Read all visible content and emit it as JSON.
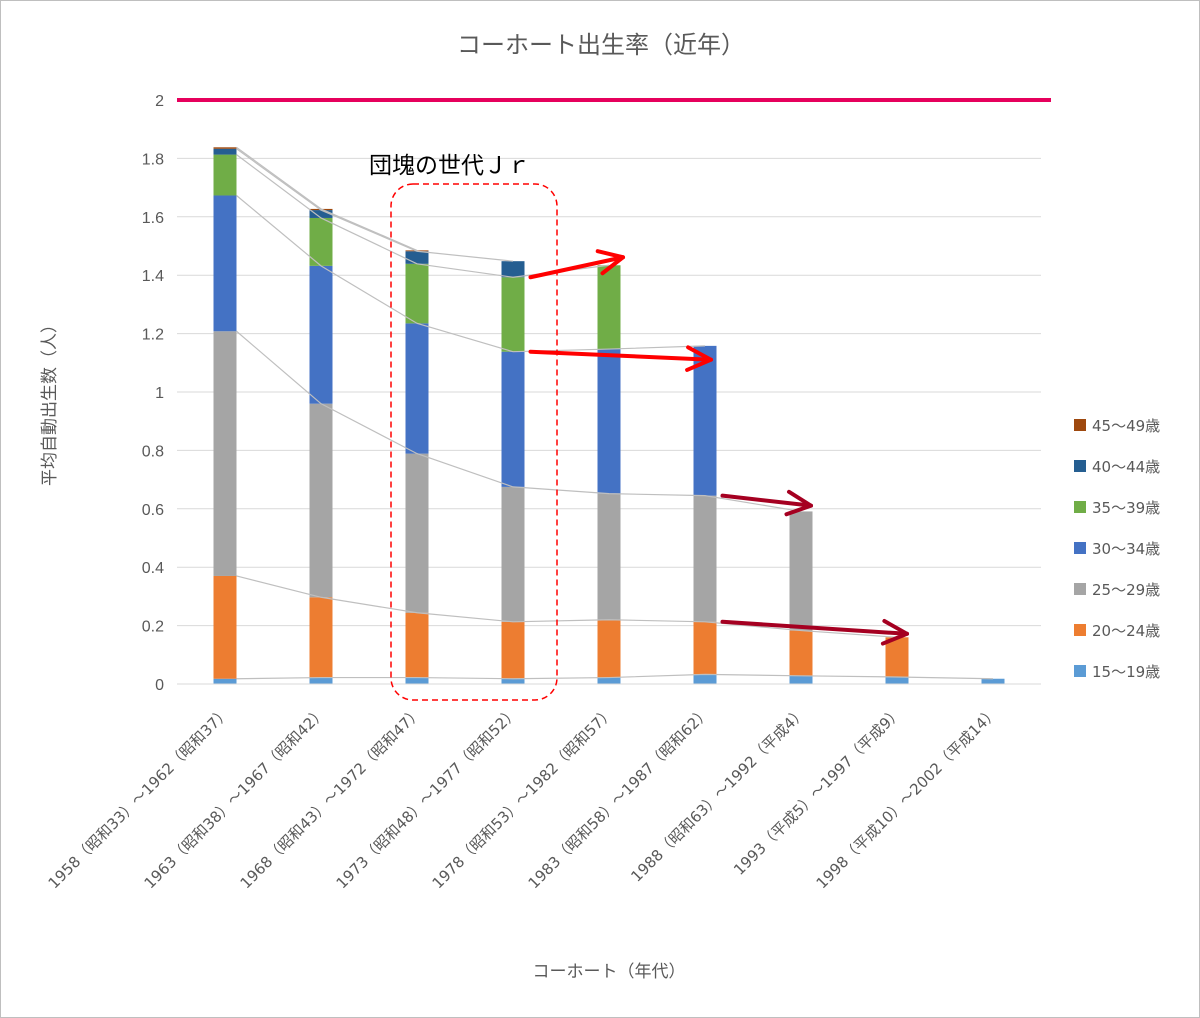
{
  "chart_data": {
    "type": "bar",
    "stacked": true,
    "title": "コーホート出生率（近年）",
    "xlabel": "コーホート（年代）",
    "ylabel": "平均自動出生数（人）",
    "ylim": [
      0,
      2
    ],
    "yticks": [
      "0",
      "0.2",
      "0.4",
      "0.6",
      "0.8",
      "1",
      "1.2",
      "1.4",
      "1.6",
      "1.8",
      "2"
    ],
    "grid": true,
    "legend_position": "right",
    "categories": [
      "1958（昭和33）～1962（昭和37）",
      "1963（昭和38）～1967（昭和42）",
      "1968（昭和43）～1972（昭和47）",
      "1973（昭和48）～1977（昭和52）",
      "1978（昭和53）～1982（昭和57）",
      "1983（昭和58）～1987（昭和62）",
      "1988（昭和63）～1992（平成4）",
      "1993（平成5）～1997（平成9）",
      "1998（平成10）～2002（平成14）"
    ],
    "series": [
      {
        "name": "15～19歳",
        "color": "#5b9bd5",
        "values": [
          0.018,
          0.022,
          0.022,
          0.018,
          0.022,
          0.033,
          0.028,
          0.024,
          0.018
        ]
      },
      {
        "name": "20～24歳",
        "color": "#ed7d31",
        "values": [
          0.352,
          0.275,
          0.222,
          0.195,
          0.198,
          0.18,
          0.155,
          0.136,
          0
        ]
      },
      {
        "name": "25～29歳",
        "color": "#a5a5a5",
        "values": [
          0.838,
          0.663,
          0.545,
          0.462,
          0.432,
          0.432,
          0.408,
          0,
          0
        ]
      },
      {
        "name": "30～34歳",
        "color": "#4472c4",
        "values": [
          0.465,
          0.472,
          0.446,
          0.463,
          0.495,
          0.513,
          0,
          0,
          0
        ]
      },
      {
        "name": "35～39歳",
        "color": "#70ad47",
        "values": [
          0.14,
          0.164,
          0.204,
          0.255,
          0.287,
          0,
          0,
          0,
          0
        ]
      },
      {
        "name": "40～44歳",
        "color": "#255e91",
        "values": [
          0.02,
          0.027,
          0.043,
          0.055,
          0,
          0,
          0,
          0,
          0
        ]
      },
      {
        "name": "45～49歳",
        "color": "#9e480e",
        "values": [
          0.005,
          0.004,
          0.003,
          0,
          0,
          0,
          0,
          0,
          0
        ]
      }
    ],
    "reference_line": {
      "value": 2,
      "color": "#e6005c"
    },
    "annotation": {
      "text": "団塊の世代Ｊｒ",
      "color": "#ff0000"
    },
    "arrows_color": {
      "red": "#ff0000",
      "dark_red": "#a50021"
    }
  }
}
